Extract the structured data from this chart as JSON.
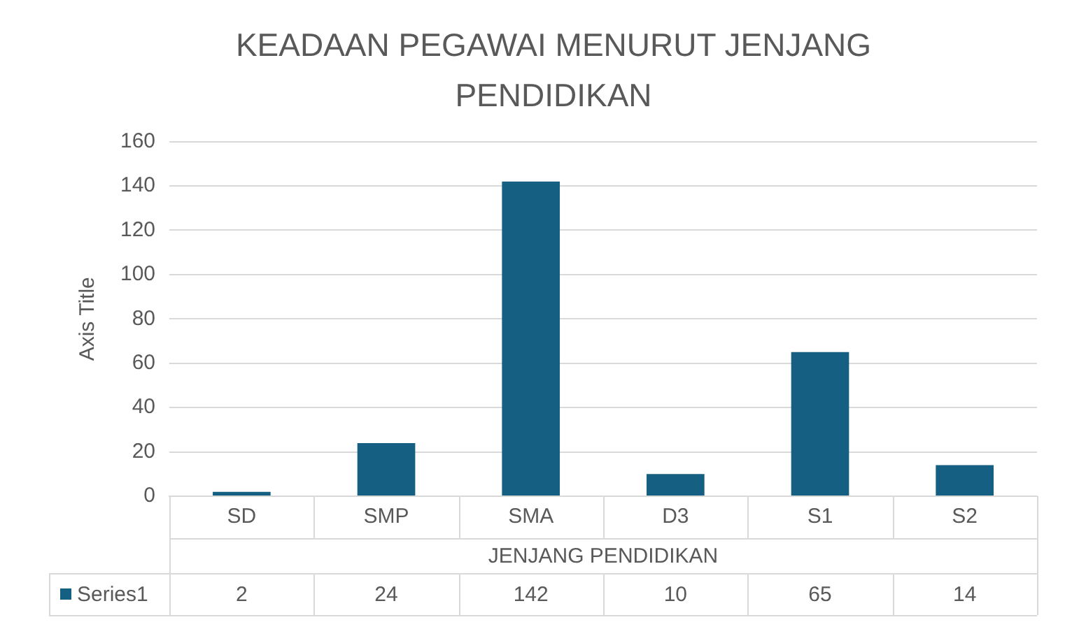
{
  "chart_data": {
    "type": "bar",
    "title": "KEADAAN PEGAWAI MENURUT JENJANG PENDIDIKAN",
    "xlabel": "JENJANG PENDIDIKAN",
    "ylabel": "Axis Title",
    "categories": [
      "SD",
      "SMP",
      "SMA",
      "D3",
      "S1",
      "S2"
    ],
    "series": [
      {
        "name": "Series1",
        "color": "#156082",
        "values": [
          2,
          24,
          142,
          10,
          65,
          14
        ]
      }
    ],
    "ylim": [
      0,
      160
    ],
    "yticks": [
      0,
      20,
      40,
      60,
      80,
      100,
      120,
      140,
      160
    ],
    "grid": "y",
    "data_labels": true,
    "legend": "bottom"
  }
}
